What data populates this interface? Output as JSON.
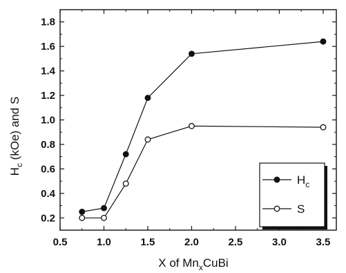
{
  "chart_data": {
    "type": "line",
    "xlabel_parts": {
      "pre": "X of Mn",
      "sub": "x",
      "post": "CuBi"
    },
    "ylabel_parts": {
      "pre": "H",
      "sub": "c",
      "post": " (kOe) and S"
    },
    "xlim": [
      0.5,
      3.65
    ],
    "ylim": [
      0.1,
      1.9
    ],
    "x_ticks": [
      "0.5",
      "1.0",
      "1.5",
      "2.0",
      "2.5",
      "3.0",
      "3.5"
    ],
    "y_ticks": [
      "0.2",
      "0.4",
      "0.6",
      "0.8",
      "1.0",
      "1.2",
      "1.4",
      "1.6",
      "1.8"
    ],
    "legend_position": "lower-right",
    "grid": false,
    "series": [
      {
        "name": "Hc",
        "name_parts": {
          "main": "H",
          "sub": "c"
        },
        "marker": "filled-circle",
        "x": [
          0.75,
          1.0,
          1.25,
          1.5,
          2.0,
          3.5
        ],
        "y": [
          0.25,
          0.28,
          0.72,
          1.18,
          1.54,
          1.64
        ]
      },
      {
        "name": "S",
        "name_parts": {
          "main": "S",
          "sub": ""
        },
        "marker": "open-circle",
        "x": [
          0.75,
          1.0,
          1.25,
          1.5,
          2.0,
          3.5
        ],
        "y": [
          0.2,
          0.2,
          0.48,
          0.84,
          0.95,
          0.94
        ]
      }
    ]
  }
}
